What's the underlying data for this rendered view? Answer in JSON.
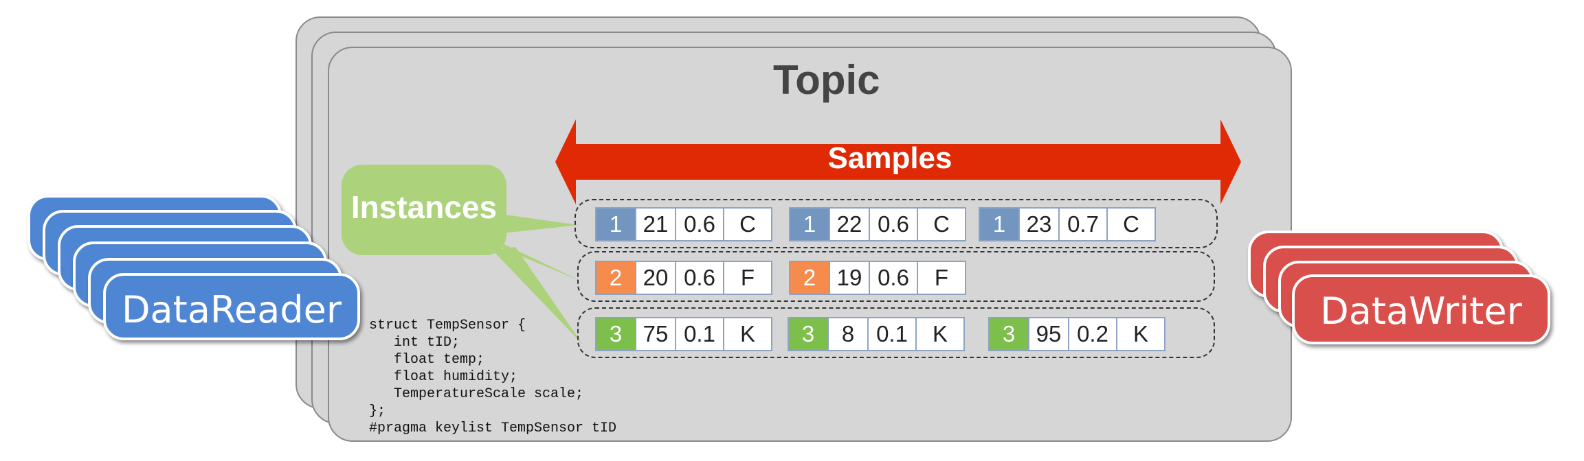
{
  "topic": {
    "title": "Topic"
  },
  "samples_label": "Samples",
  "instances_label": "Instances",
  "data_reader": {
    "label": "DataReader"
  },
  "data_writer": {
    "label": "DataWriter"
  },
  "colors": {
    "key_1": "#7396c0",
    "key_2": "#f68b4e",
    "key_3": "#7cbf4a",
    "samples_arrow": "#e02a06",
    "instances": "#acd37c",
    "reader": "#4e86d4",
    "writer": "#d94f4b"
  },
  "instances": [
    {
      "key": "1",
      "samples": [
        [
          "21",
          "0.6",
          "C"
        ],
        [
          "22",
          "0.6",
          "C"
        ],
        [
          "23",
          "0.7",
          "C"
        ]
      ]
    },
    {
      "key": "2",
      "samples": [
        [
          "20",
          "0.6",
          "F"
        ],
        [
          "19",
          "0.6",
          "F"
        ]
      ]
    },
    {
      "key": "3",
      "samples": [
        [
          "75",
          "0.1",
          "K"
        ],
        [
          "8",
          "0.1",
          "K"
        ],
        [
          "95",
          "0.2",
          "K"
        ]
      ]
    }
  ],
  "code": {
    "lines": [
      "struct TempSensor {",
      "   int tID;",
      "   float temp;",
      "   float humidity;",
      "   TemperatureScale scale;",
      "};",
      "#pragma keylist TempSensor tID"
    ]
  }
}
